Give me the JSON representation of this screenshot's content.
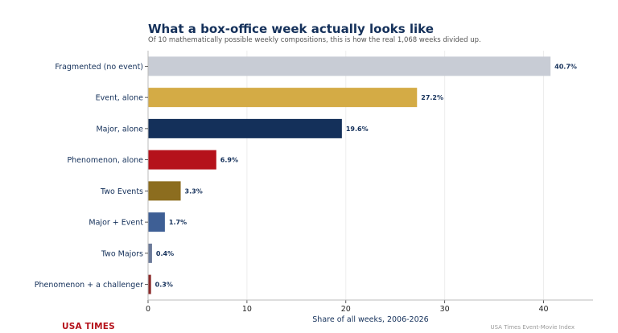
{
  "chart_data": {
    "type": "bar",
    "orientation": "horizontal",
    "title": "What a box-office week actually looks like",
    "subtitle": "Of 10 mathematically possible weekly compositions, this is how the real 1,068 weeks divided up.",
    "xlabel": "Share of all weeks, 2006-2026",
    "ylabel": "",
    "xlim": [
      0,
      45
    ],
    "xticks": [
      "0",
      "10",
      "20",
      "30",
      "40"
    ],
    "grid": "vertical",
    "categories": [
      "Fragmented (no event)",
      "Event, alone",
      "Major, alone",
      "Phenomenon, alone",
      "Two Events",
      "Major + Event",
      "Two Majors",
      "Phenomenon + a challenger"
    ],
    "values": [
      40.7,
      27.2,
      19.6,
      6.9,
      3.3,
      1.7,
      0.4,
      0.3
    ],
    "value_labels": [
      "40.7%",
      "27.2%",
      "19.6%",
      "6.9%",
      "3.3%",
      "1.7%",
      "0.4%",
      "0.3%"
    ],
    "colors": [
      "#c8ccd5",
      "#d4ab45",
      "#14305a",
      "#b5121b",
      "#8c6d1f",
      "#3e5f95",
      "#6b7a99",
      "#8b2a2a"
    ]
  },
  "footer": {
    "brand": "USA TIMES",
    "source": "USA Times Event-Movie Index"
  }
}
